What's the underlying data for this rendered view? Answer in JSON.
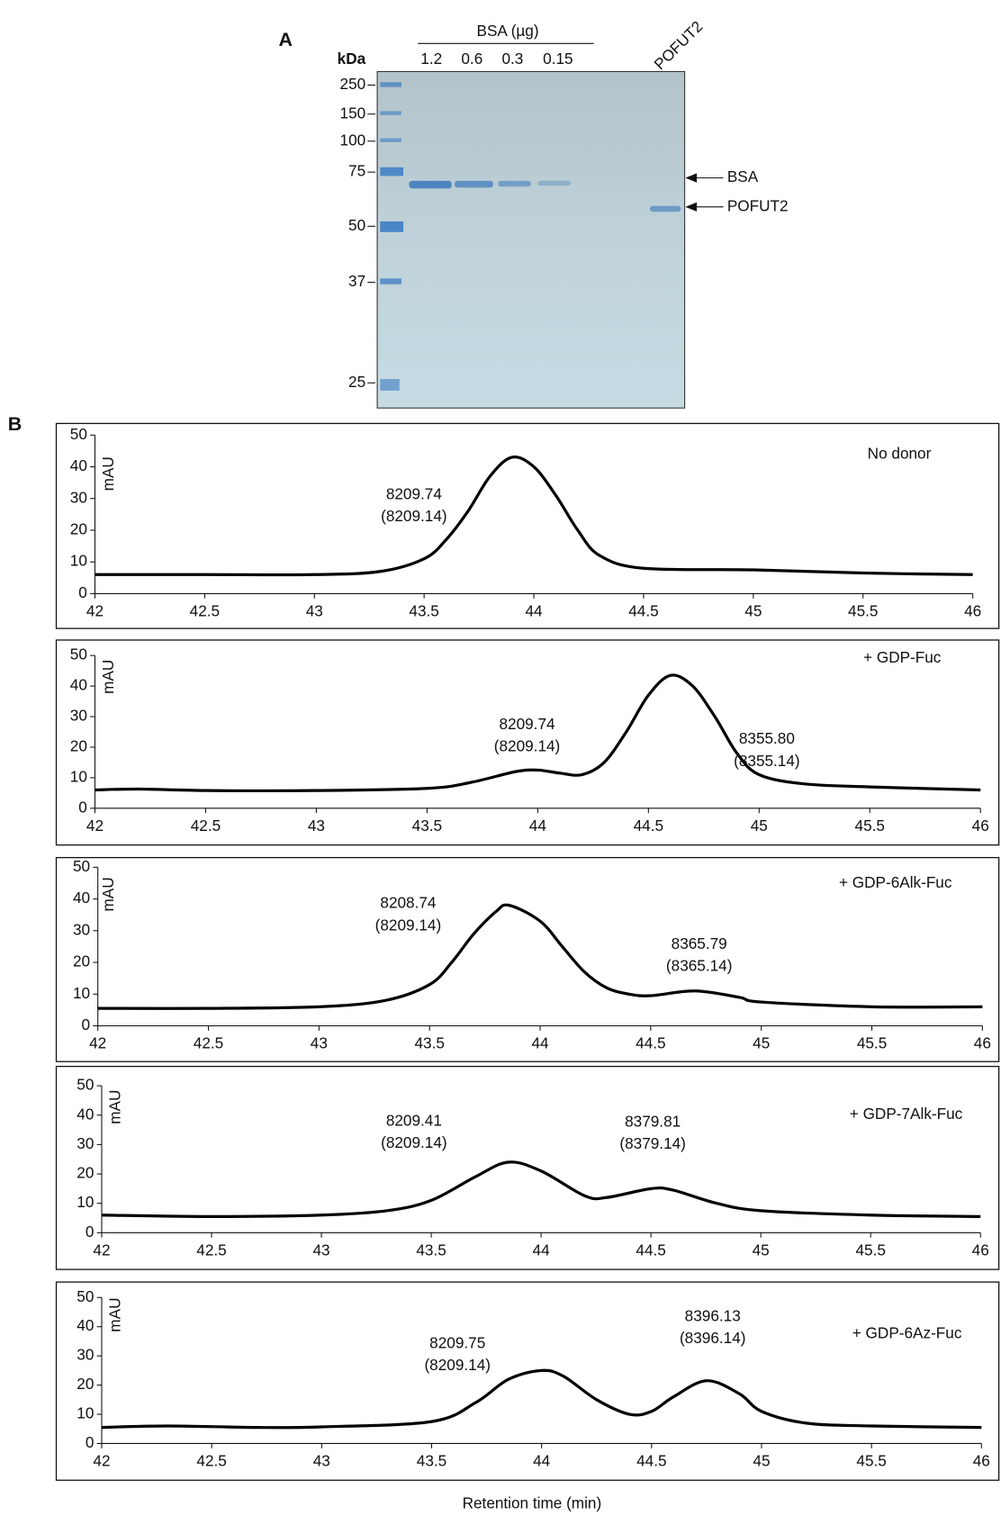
{
  "panel_a": {
    "label": "A",
    "unit": "kDa",
    "ladder": [
      "250",
      "150",
      "100",
      "75",
      "50",
      "37",
      "25"
    ],
    "group": "BSA (µg)",
    "lanes": [
      "1.2",
      "0.6",
      "0.3",
      "0.15"
    ],
    "sample": "POFUT2",
    "arrows": [
      "BSA",
      "POFUT2"
    ]
  },
  "panel_b": {
    "label": "B",
    "xlabel": "Retention time (min)"
  },
  "chart_data": [
    {
      "type": "line",
      "label": "No donor",
      "ylabel": "mAU",
      "annotations": [
        [
          "8209.74",
          "(8209.14)"
        ]
      ],
      "x": [
        42,
        42.5,
        43,
        43.3,
        43.5,
        43.6,
        43.7,
        43.8,
        43.9,
        44,
        44.1,
        44.2,
        44.3,
        44.5,
        45,
        45.5,
        46
      ],
      "series": [
        {
          "color": "#000000",
          "values": [
            6,
            6,
            6,
            7,
            11,
            17,
            26,
            37,
            43,
            40,
            31,
            20,
            12,
            8,
            7.5,
            6.5,
            6
          ]
        }
      ],
      "xlim": [
        42,
        46
      ],
      "xticks": [
        42,
        42.5,
        43,
        43.5,
        44,
        44.5,
        45,
        45.5,
        46
      ],
      "ylim": [
        0,
        50
      ],
      "yticks": [
        0,
        10,
        20,
        30,
        40,
        50
      ]
    },
    {
      "type": "line",
      "label": "+ GDP-Fuc",
      "ylabel": "mAU",
      "annotations": [
        [
          "8209.74",
          "(8209.14)"
        ],
        [
          "8355.80",
          "(8355.14)"
        ]
      ],
      "x": [
        42,
        42.2,
        42.5,
        43,
        43.5,
        43.7,
        43.9,
        44,
        44.1,
        44.2,
        44.3,
        44.4,
        44.5,
        44.6,
        44.7,
        44.8,
        44.9,
        45,
        45.2,
        45.5,
        46
      ],
      "series": [
        {
          "color": "#000000",
          "values": [
            6,
            6.3,
            5.8,
            5.8,
            6.5,
            8.5,
            12,
            12.5,
            11.5,
            11,
            15,
            25,
            37,
            43.5,
            40,
            30,
            18,
            11,
            8,
            7,
            6
          ]
        }
      ],
      "xlim": [
        42,
        46
      ],
      "xticks": [
        42,
        42.5,
        43,
        43.5,
        44,
        44.5,
        45,
        45.5,
        46
      ],
      "ylim": [
        0,
        50
      ],
      "yticks": [
        0,
        10,
        20,
        30,
        40,
        50
      ]
    },
    {
      "type": "line",
      "label": "+ GDP-6Alk-Fuc",
      "ylabel": "mAU",
      "annotations": [
        [
          "8208.74",
          "(8209.14)"
        ],
        [
          "8365.79",
          "(8365.14)"
        ]
      ],
      "x": [
        42,
        42.5,
        43,
        43.3,
        43.5,
        43.6,
        43.7,
        43.8,
        43.86,
        44,
        44.1,
        44.2,
        44.3,
        44.4,
        44.5,
        44.7,
        44.9,
        45,
        45.5,
        46
      ],
      "series": [
        {
          "color": "#000000",
          "values": [
            5.5,
            5.5,
            6,
            8,
            13,
            20,
            29,
            36,
            38,
            33,
            25,
            17,
            12,
            10,
            9.5,
            11,
            9,
            7.5,
            6,
            6
          ]
        }
      ],
      "xlim": [
        42,
        46
      ],
      "xticks": [
        42,
        42.5,
        43,
        43.5,
        44,
        44.5,
        45,
        45.5,
        46
      ],
      "ylim": [
        0,
        50
      ],
      "yticks": [
        0,
        10,
        20,
        30,
        40,
        50
      ]
    },
    {
      "type": "line",
      "label": "+ GDP-7Alk-Fuc",
      "ylabel": "mAU",
      "annotations": [
        [
          "8209.41",
          "(8209.14)"
        ],
        [
          "8379.81",
          "(8379.14)"
        ]
      ],
      "x": [
        42,
        42.5,
        43,
        43.3,
        43.5,
        43.7,
        43.85,
        44,
        44.2,
        44.3,
        44.5,
        44.6,
        44.8,
        45,
        45.5,
        46
      ],
      "series": [
        {
          "color": "#000000",
          "values": [
            6,
            5.5,
            6,
            7.5,
            11,
            19,
            24,
            21,
            12.5,
            12,
            15,
            14.5,
            10,
            7.5,
            6,
            5.5
          ]
        }
      ],
      "xlim": [
        42,
        46
      ],
      "xticks": [
        42,
        42.5,
        43,
        43.5,
        44,
        44.5,
        45,
        45.5,
        46
      ],
      "ylim": [
        0,
        50
      ],
      "yticks": [
        0,
        10,
        20,
        30,
        40,
        50
      ]
    },
    {
      "type": "line",
      "label": "+ GDP-6Az-Fuc",
      "ylabel": "mAU",
      "annotations": [
        [
          "8209.75",
          "(8209.14)"
        ],
        [
          "8396.13",
          "(8396.14)"
        ]
      ],
      "x": [
        42,
        42.3,
        42.7,
        43,
        43.5,
        43.7,
        43.85,
        44,
        44.1,
        44.25,
        44.4,
        44.5,
        44.6,
        44.75,
        44.9,
        45,
        45.2,
        45.5,
        46
      ],
      "series": [
        {
          "color": "#000000",
          "values": [
            5.5,
            6,
            5.5,
            5.7,
            7.5,
            14,
            22,
            25,
            23,
            15,
            10,
            11,
            16,
            21.5,
            17,
            11,
            7,
            6,
            5.5
          ]
        }
      ],
      "xlim": [
        42,
        46
      ],
      "xticks": [
        42,
        42.5,
        43,
        43.5,
        44,
        44.5,
        45,
        45.5,
        46
      ],
      "ylim": [
        0,
        50
      ],
      "yticks": [
        0,
        10,
        20,
        30,
        40,
        50
      ]
    }
  ]
}
